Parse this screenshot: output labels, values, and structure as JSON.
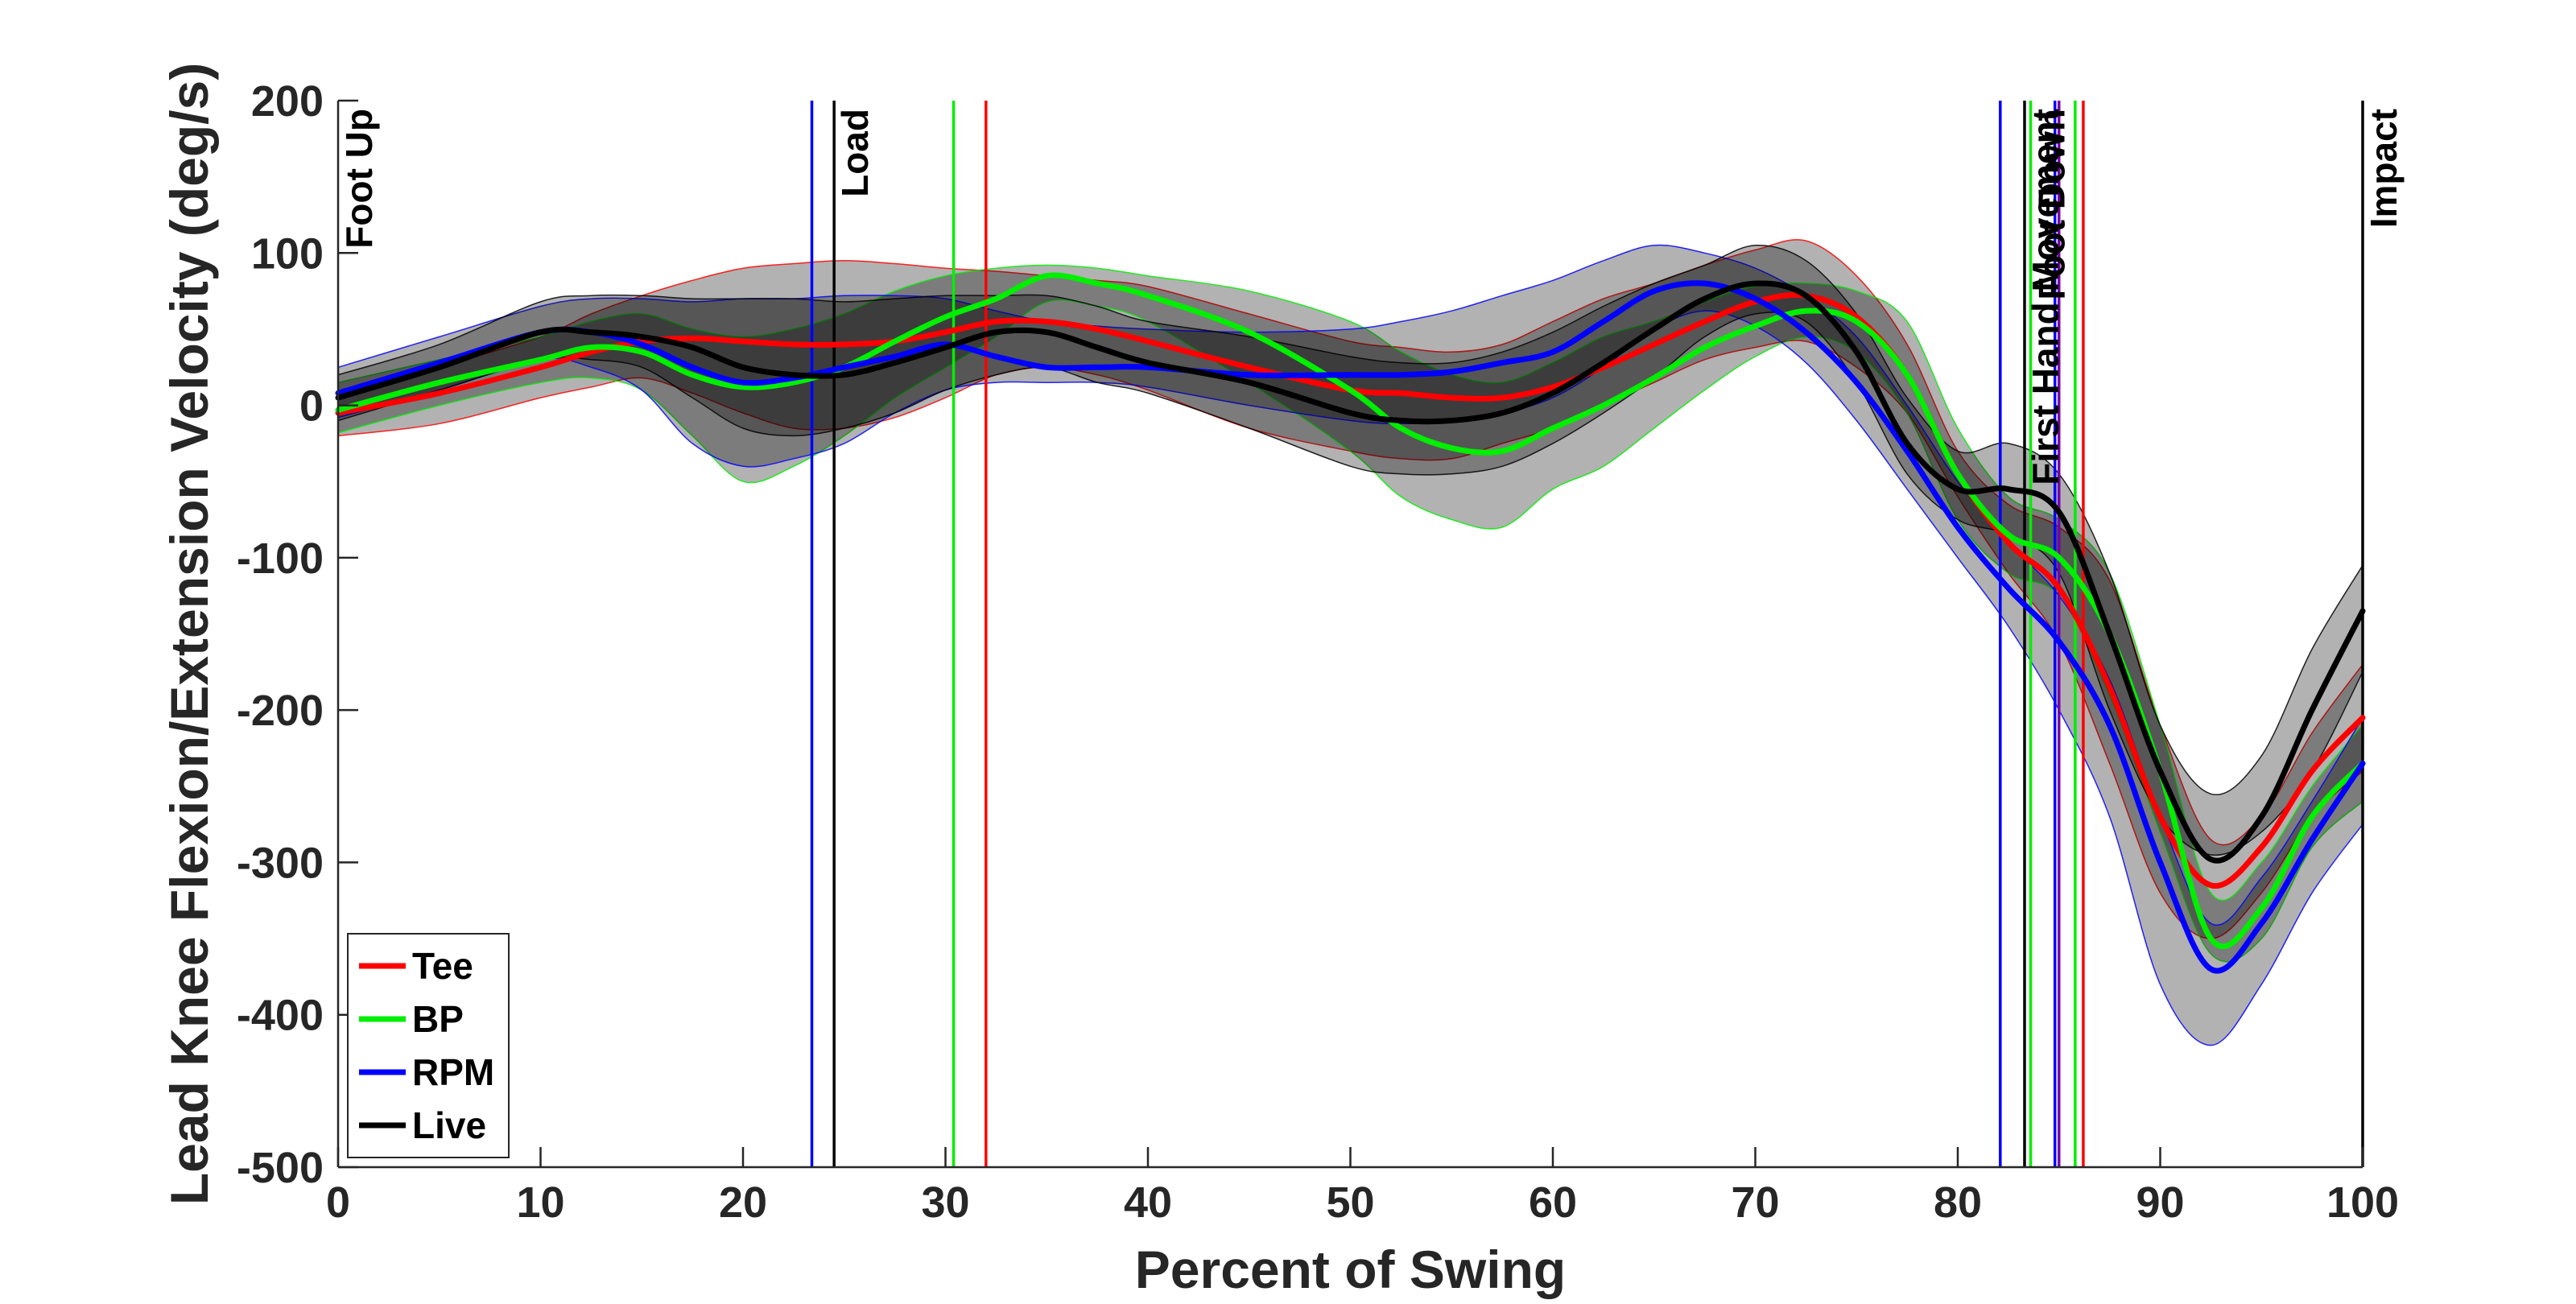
{
  "chart_data": {
    "type": "line",
    "xlabel": "Percent of Swing",
    "ylabel": "Lead Knee Flexion/Extension Velocity (deg/s)",
    "xlim": [
      0,
      100
    ],
    "ylim": [
      -500,
      200
    ],
    "xticks": [
      0,
      10,
      20,
      30,
      40,
      50,
      60,
      70,
      80,
      90,
      100
    ],
    "yticks": [
      -500,
      -400,
      -300,
      -200,
      -100,
      0,
      100,
      200
    ],
    "grid": false,
    "legend_position": "bottom-left",
    "x": [
      0,
      5,
      10,
      12.5,
      15,
      17.5,
      20,
      22.5,
      25,
      27.5,
      30,
      32.5,
      35,
      37.5,
      40,
      45,
      50,
      52.5,
      55,
      57.5,
      60,
      62.5,
      65,
      67.5,
      70,
      72.5,
      75,
      77.5,
      80,
      82.5,
      85,
      87.5,
      90,
      92.5,
      95,
      97.5,
      100
    ],
    "series": [
      {
        "name": "Tee",
        "color": "#ff0000",
        "mean": [
          -5,
          8,
          25,
          35,
          42,
          44,
          42,
          40,
          40,
          42,
          48,
          55,
          55,
          50,
          42,
          25,
          10,
          8,
          5,
          5,
          12,
          25,
          40,
          55,
          68,
          72,
          58,
          20,
          -45,
          -90,
          -120,
          -185,
          -270,
          -315,
          -290,
          -240,
          -205
        ],
        "upper": [
          5,
          25,
          45,
          60,
          72,
          82,
          90,
          93,
          95,
          93,
          90,
          88,
          85,
          82,
          78,
          60,
          42,
          38,
          35,
          40,
          55,
          70,
          80,
          92,
          102,
          108,
          85,
          40,
          -30,
          -65,
          -80,
          -115,
          -210,
          -285,
          -270,
          -215,
          -170
        ],
        "lower": [
          -20,
          -12,
          5,
          12,
          18,
          8,
          -5,
          -15,
          -15,
          -8,
          5,
          20,
          25,
          20,
          10,
          -15,
          -30,
          -35,
          -35,
          -25,
          -15,
          0,
          15,
          30,
          38,
          42,
          25,
          -5,
          -60,
          -110,
          -155,
          -235,
          -320,
          -350,
          -320,
          -270,
          -240
        ]
      },
      {
        "name": "BP",
        "color": "#00ee00",
        "mean": [
          -3,
          15,
          30,
          38,
          35,
          20,
          12,
          15,
          25,
          42,
          58,
          70,
          85,
          80,
          72,
          48,
          10,
          -15,
          -28,
          -30,
          -15,
          0,
          18,
          38,
          52,
          62,
          55,
          20,
          -45,
          -85,
          -100,
          -150,
          -240,
          -350,
          -330,
          -270,
          -235
        ],
        "upper": [
          15,
          30,
          45,
          55,
          60,
          50,
          45,
          50,
          60,
          75,
          85,
          90,
          92,
          90,
          85,
          75,
          55,
          35,
          20,
          15,
          28,
          45,
          55,
          68,
          78,
          80,
          75,
          55,
          -15,
          -60,
          -75,
          -110,
          -210,
          -320,
          -300,
          -250,
          -210
        ],
        "lower": [
          -18,
          0,
          15,
          18,
          10,
          -20,
          -50,
          -40,
          -20,
          5,
          25,
          45,
          68,
          65,
          55,
          15,
          -30,
          -60,
          -75,
          -80,
          -55,
          -40,
          -15,
          10,
          32,
          45,
          35,
          -5,
          -75,
          -110,
          -125,
          -190,
          -280,
          -360,
          -350,
          -290,
          -260
        ]
      },
      {
        "name": "RPM",
        "color": "#0000ff",
        "mean": [
          8,
          28,
          48,
          48,
          40,
          25,
          15,
          18,
          25,
          32,
          40,
          32,
          25,
          25,
          25,
          20,
          20,
          20,
          22,
          28,
          35,
          55,
          75,
          80,
          70,
          48,
          15,
          -30,
          -80,
          -120,
          -155,
          -210,
          -300,
          -370,
          -340,
          -285,
          -235
        ],
        "upper": [
          25,
          45,
          65,
          70,
          70,
          68,
          70,
          70,
          72,
          72,
          70,
          62,
          55,
          52,
          50,
          48,
          50,
          55,
          62,
          72,
          82,
          95,
          105,
          100,
          90,
          72,
          45,
          0,
          -50,
          -90,
          -125,
          -180,
          -270,
          -340,
          -310,
          -260,
          -205
        ],
        "lower": [
          -8,
          10,
          30,
          25,
          10,
          -25,
          -40,
          -35,
          -25,
          -5,
          10,
          15,
          15,
          15,
          12,
          0,
          -10,
          -12,
          -10,
          -5,
          5,
          25,
          50,
          62,
          52,
          28,
          -10,
          -55,
          -100,
          -145,
          -200,
          -270,
          -380,
          -420,
          -380,
          -320,
          -275
        ]
      },
      {
        "name": "Live",
        "color": "#000000",
        "mean": [
          5,
          25,
          48,
          48,
          45,
          38,
          25,
          20,
          20,
          28,
          38,
          48,
          48,
          38,
          28,
          15,
          -5,
          -10,
          -10,
          -5,
          8,
          28,
          50,
          70,
          80,
          72,
          35,
          -25,
          -55,
          -55,
          -70,
          -150,
          -240,
          -298,
          -270,
          -200,
          -135
        ],
        "upper": [
          20,
          40,
          68,
          72,
          72,
          70,
          70,
          70,
          68,
          70,
          72,
          72,
          72,
          65,
          55,
          45,
          32,
          28,
          28,
          35,
          48,
          65,
          80,
          92,
          105,
          95,
          60,
          5,
          -30,
          -25,
          -45,
          -110,
          -210,
          -255,
          -230,
          -160,
          -105
        ],
        "lower": [
          -10,
          10,
          30,
          30,
          25,
          5,
          -15,
          -20,
          -15,
          -5,
          10,
          20,
          25,
          15,
          8,
          -15,
          -40,
          -45,
          -45,
          -40,
          -25,
          -5,
          18,
          45,
          60,
          55,
          15,
          -45,
          -75,
          -85,
          -110,
          -200,
          -270,
          -295,
          -280,
          -240,
          -175
        ]
      }
    ],
    "events": [
      {
        "label": "Foot Up",
        "x": 0
      },
      {
        "label": "Load",
        "x": 24.5
      },
      {
        "label": "First Hand Movement",
        "x": 83.3
      },
      {
        "label": "Foot Down",
        "x": 83.6
      },
      {
        "label": "Impact",
        "x": 100
      }
    ],
    "condition_event_lines": [
      {
        "series": "RPM",
        "color": "#0000ff",
        "x": [
          23.4,
          82.1,
          84.8
        ]
      },
      {
        "series": "Live",
        "color": "#000000",
        "x": [
          24.5,
          83.3,
          100
        ]
      },
      {
        "series": "BP",
        "color": "#00ee00",
        "x": [
          30.4,
          83.6,
          85.8
        ]
      },
      {
        "series": "Tee",
        "color": "#ff0000",
        "x": [
          32.0,
          86.2
        ]
      },
      {
        "series": "",
        "color": "#7700aa",
        "x": [
          85.0
        ]
      }
    ]
  }
}
